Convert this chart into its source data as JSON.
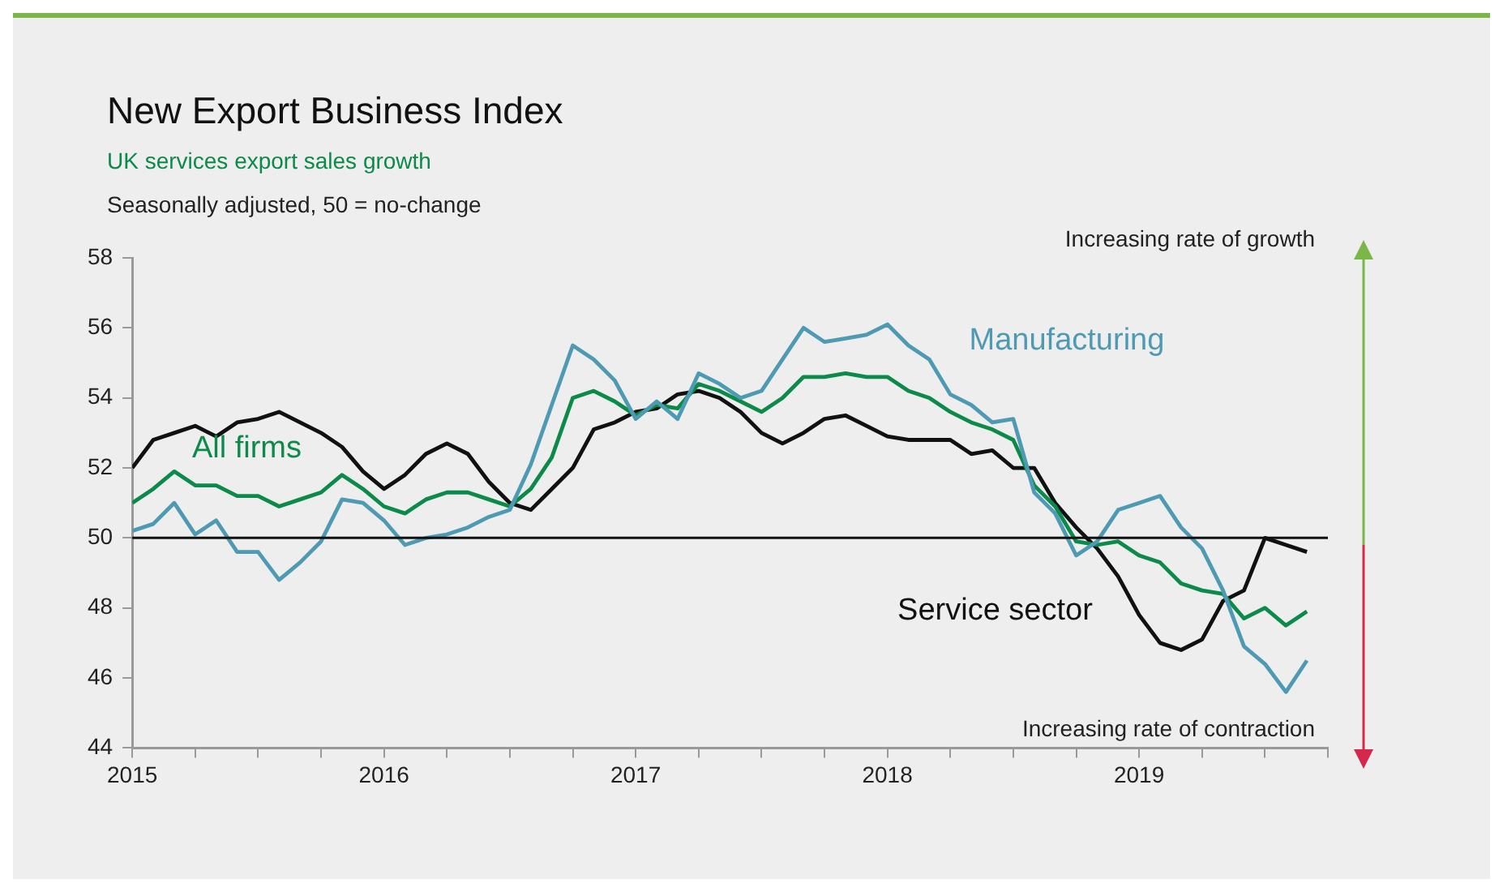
{
  "chart_data": {
    "type": "line",
    "title": "New Export Business Index",
    "subtitle": "UK services export sales growth",
    "ylabel": "Seasonally adjusted, 50 = no-change",
    "x": [
      "2015-01",
      "2015-02",
      "2015-03",
      "2015-04",
      "2015-05",
      "2015-06",
      "2015-07",
      "2015-08",
      "2015-09",
      "2015-10",
      "2015-11",
      "2015-12",
      "2016-01",
      "2016-02",
      "2016-03",
      "2016-04",
      "2016-05",
      "2016-06",
      "2016-07",
      "2016-08",
      "2016-09",
      "2016-10",
      "2016-11",
      "2016-12",
      "2017-01",
      "2017-02",
      "2017-03",
      "2017-04",
      "2017-05",
      "2017-06",
      "2017-07",
      "2017-08",
      "2017-09",
      "2017-10",
      "2017-11",
      "2017-12",
      "2018-01",
      "2018-02",
      "2018-03",
      "2018-04",
      "2018-05",
      "2018-06",
      "2018-07",
      "2018-08",
      "2018-09",
      "2018-10",
      "2018-11",
      "2018-12",
      "2019-01",
      "2019-02",
      "2019-03",
      "2019-04",
      "2019-05",
      "2019-06",
      "2019-07",
      "2019-08",
      "2019-09"
    ],
    "series": [
      {
        "name": "Manufacturing",
        "color": "#4f9ab3",
        "values": [
          50.2,
          50.4,
          51.0,
          50.1,
          50.5,
          49.6,
          49.6,
          48.8,
          49.3,
          49.9,
          51.1,
          51.0,
          50.5,
          49.8,
          50.0,
          50.1,
          50.3,
          50.6,
          50.8,
          52.1,
          53.8,
          55.5,
          55.1,
          54.5,
          53.4,
          53.9,
          53.4,
          54.7,
          54.4,
          54.0,
          54.2,
          55.1,
          56.0,
          55.6,
          55.7,
          55.8,
          56.1,
          55.5,
          55.1,
          54.1,
          53.8,
          53.3,
          53.4,
          51.3,
          50.7,
          49.5,
          49.9,
          50.8,
          51.0,
          51.2,
          50.3,
          49.7,
          48.5,
          46.9,
          46.4,
          45.6,
          46.5
        ]
      },
      {
        "name": "All firms",
        "color": "#0b8a4a",
        "values": [
          51.0,
          51.4,
          51.9,
          51.5,
          51.5,
          51.2,
          51.2,
          50.9,
          51.1,
          51.3,
          51.8,
          51.4,
          50.9,
          50.7,
          51.1,
          51.3,
          51.3,
          51.1,
          50.9,
          51.4,
          52.3,
          54.0,
          54.2,
          53.9,
          53.5,
          53.8,
          53.7,
          54.4,
          54.2,
          53.9,
          53.6,
          54.0,
          54.6,
          54.6,
          54.7,
          54.6,
          54.6,
          54.2,
          54.0,
          53.6,
          53.3,
          53.1,
          52.8,
          51.5,
          50.9,
          49.9,
          49.8,
          49.9,
          49.5,
          49.3,
          48.7,
          48.5,
          48.4,
          47.7,
          48.0,
          47.5,
          47.9
        ]
      },
      {
        "name": "Service sector",
        "color": "#111111",
        "values": [
          52.0,
          52.8,
          53.0,
          53.2,
          52.9,
          53.3,
          53.4,
          53.6,
          53.3,
          53.0,
          52.6,
          51.9,
          51.4,
          51.8,
          52.4,
          52.7,
          52.4,
          51.6,
          51.0,
          50.8,
          51.4,
          52.0,
          53.1,
          53.3,
          53.6,
          53.7,
          54.1,
          54.2,
          54.0,
          53.6,
          53.0,
          52.7,
          53.0,
          53.4,
          53.5,
          53.2,
          52.9,
          52.8,
          52.8,
          52.8,
          52.4,
          52.5,
          52.0,
          52.0,
          51.0,
          50.3,
          49.7,
          48.9,
          47.8,
          47.0,
          46.8,
          47.1,
          48.2,
          48.5,
          50.0,
          49.8,
          49.6
        ]
      }
    ],
    "xlim": [
      "2015-01",
      "2019-10"
    ],
    "xticks": [
      {
        "value": "2015-01",
        "label": "2015"
      },
      {
        "value": "2015-04",
        "label": null
      },
      {
        "value": "2015-07",
        "label": null
      },
      {
        "value": "2015-10",
        "label": null
      },
      {
        "value": "2016-01",
        "label": "2016"
      },
      {
        "value": "2016-04",
        "label": null
      },
      {
        "value": "2016-07",
        "label": null
      },
      {
        "value": "2016-10",
        "label": null
      },
      {
        "value": "2017-01",
        "label": "2017"
      },
      {
        "value": "2017-04",
        "label": null
      },
      {
        "value": "2017-07",
        "label": null
      },
      {
        "value": "2017-10",
        "label": null
      },
      {
        "value": "2018-01",
        "label": "2018"
      },
      {
        "value": "2018-04",
        "label": null
      },
      {
        "value": "2018-07",
        "label": null
      },
      {
        "value": "2018-10",
        "label": null
      },
      {
        "value": "2019-01",
        "label": "2019"
      },
      {
        "value": "2019-04",
        "label": null
      },
      {
        "value": "2019-07",
        "label": null
      },
      {
        "value": "2019-10",
        "label": null
      }
    ],
    "ylim": [
      44,
      58
    ],
    "yticks": [
      44,
      46,
      48,
      50,
      52,
      54,
      56,
      58
    ],
    "ref_lines": [
      {
        "axis": "y",
        "value": 50,
        "color": "#111111"
      }
    ],
    "annotations": [
      "Increasing rate of growth",
      "Increasing rate of contraction"
    ],
    "grid": false,
    "legend": false,
    "marker": "none",
    "line_style": "solid"
  }
}
